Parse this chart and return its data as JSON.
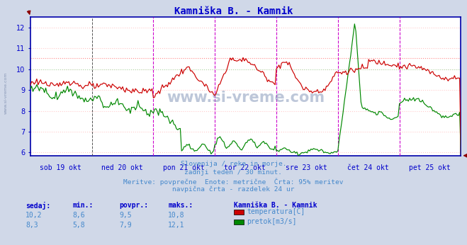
{
  "title": "Kamniška B. - Kamnik",
  "title_color": "#0000cc",
  "bg_color": "#d0d8e8",
  "plot_bg_color": "#ffffff",
  "temp_color": "#cc0000",
  "flow_color": "#008800",
  "vline_magenta": "#cc00cc",
  "vline_darkgray": "#555555",
  "hline_red_dotted": "#ff0000",
  "hline_green_dotted": "#00aa00",
  "hline_95pct": "#ff4444",
  "border_color": "#0000aa",
  "x_label_color": "#0000cc",
  "text_color": "#4488cc",
  "yticks": [
    6,
    7,
    8,
    9,
    10,
    11,
    12
  ],
  "ylim": [
    5.85,
    12.5
  ],
  "x_tick_labels": [
    "sob 19 okt",
    "ned 20 okt",
    "pon 21 okt",
    "tor 22 okt",
    "sre 23 okt",
    "čet 24 okt",
    "pet 25 okt"
  ],
  "n_points": 337,
  "day_pts": 48,
  "subtitle_lines": [
    "Slovenija / reke in morje.",
    "zadnji teden / 30 minut.",
    "Meritve: povprečne  Enote: metrične  Črta: 95% meritev",
    "navpična črta - razdelek 24 ur"
  ],
  "table_headers": [
    "sedaj:",
    "min.:",
    "povpr.:",
    "maks.:"
  ],
  "table_row1": [
    "10,2",
    "8,6",
    "9,5",
    "10,8"
  ],
  "table_row2": [
    "8,3",
    "5,8",
    "7,9",
    "12,1"
  ],
  "legend_title": "Kamniška B. - Kamnik",
  "legend_items": [
    "temperatura[C]",
    "pretok[m3/s]"
  ],
  "temp_avg": 9.5,
  "flow_avg": 7.9,
  "pct95_temp": 10.55,
  "pct95_flow": 10.0,
  "watermark": "www.si-vreme.com"
}
